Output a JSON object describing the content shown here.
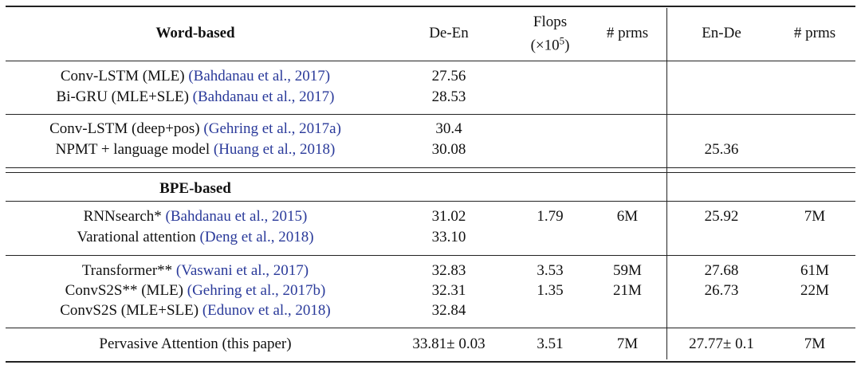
{
  "table": {
    "header": {
      "section": "Word-based",
      "de_en": "De-En",
      "flops": [
        "Flops",
        "(×10",
        "5",
        ")"
      ],
      "prms": "# prms",
      "en_de": "En-De",
      "prms2": "# prms"
    },
    "word_rows": [
      {
        "model": "Conv-LSTM (MLE)",
        "cite": "(Bahdanau et al., 2017)",
        "cells": [
          "27.56",
          null,
          null,
          null,
          null
        ]
      },
      {
        "model": "Bi-GRU (MLE+SLE)",
        "cite": "(Bahdanau et al., 2017)",
        "cells": [
          "28.53",
          null,
          null,
          null,
          null
        ]
      },
      {
        "model": "Conv-LSTM (deep+pos)",
        "cite": "(Gehring et al., 2017a)",
        "cells": [
          "30.4",
          null,
          null,
          null,
          null
        ]
      },
      {
        "model": "NPMT + language model",
        "cite": "(Huang et al., 2018)",
        "cells": [
          "30.08",
          null,
          null,
          "25.36",
          null
        ]
      }
    ],
    "bpe_title": "BPE-based",
    "bpe_rows": [
      {
        "model": "RNNsearch*",
        "cite": "(Bahdanau et al., 2015)",
        "cells": [
          "31.02",
          "1.79",
          "6M",
          "25.92",
          "7M"
        ]
      },
      {
        "model": "Varational attention",
        "cite": "(Deng et al., 2018)",
        "cells": [
          "33.10",
          null,
          null,
          null,
          null
        ]
      },
      {
        "model": "Transformer**",
        "cite": "(Vaswani et al., 2017)",
        "cells": [
          "32.83",
          "3.53",
          "59M",
          "27.68",
          "61M"
        ]
      },
      {
        "model": "ConvS2S** (MLE)",
        "cite": "(Gehring et al., 2017b)",
        "cells": [
          "32.31",
          "1.35",
          "21M",
          "26.73",
          "22M"
        ]
      },
      {
        "model": "ConvS2S (MLE+SLE)",
        "cite": "(Edunov et al., 2018)",
        "cells": [
          "32.84",
          null,
          null,
          null,
          null
        ]
      },
      {
        "model": "Pervasive Attention (this paper)",
        "cite": null,
        "cells": [
          "33.81± 0.03",
          "3.51",
          "7M",
          "27.77± 0.1",
          "7M"
        ]
      }
    ]
  }
}
